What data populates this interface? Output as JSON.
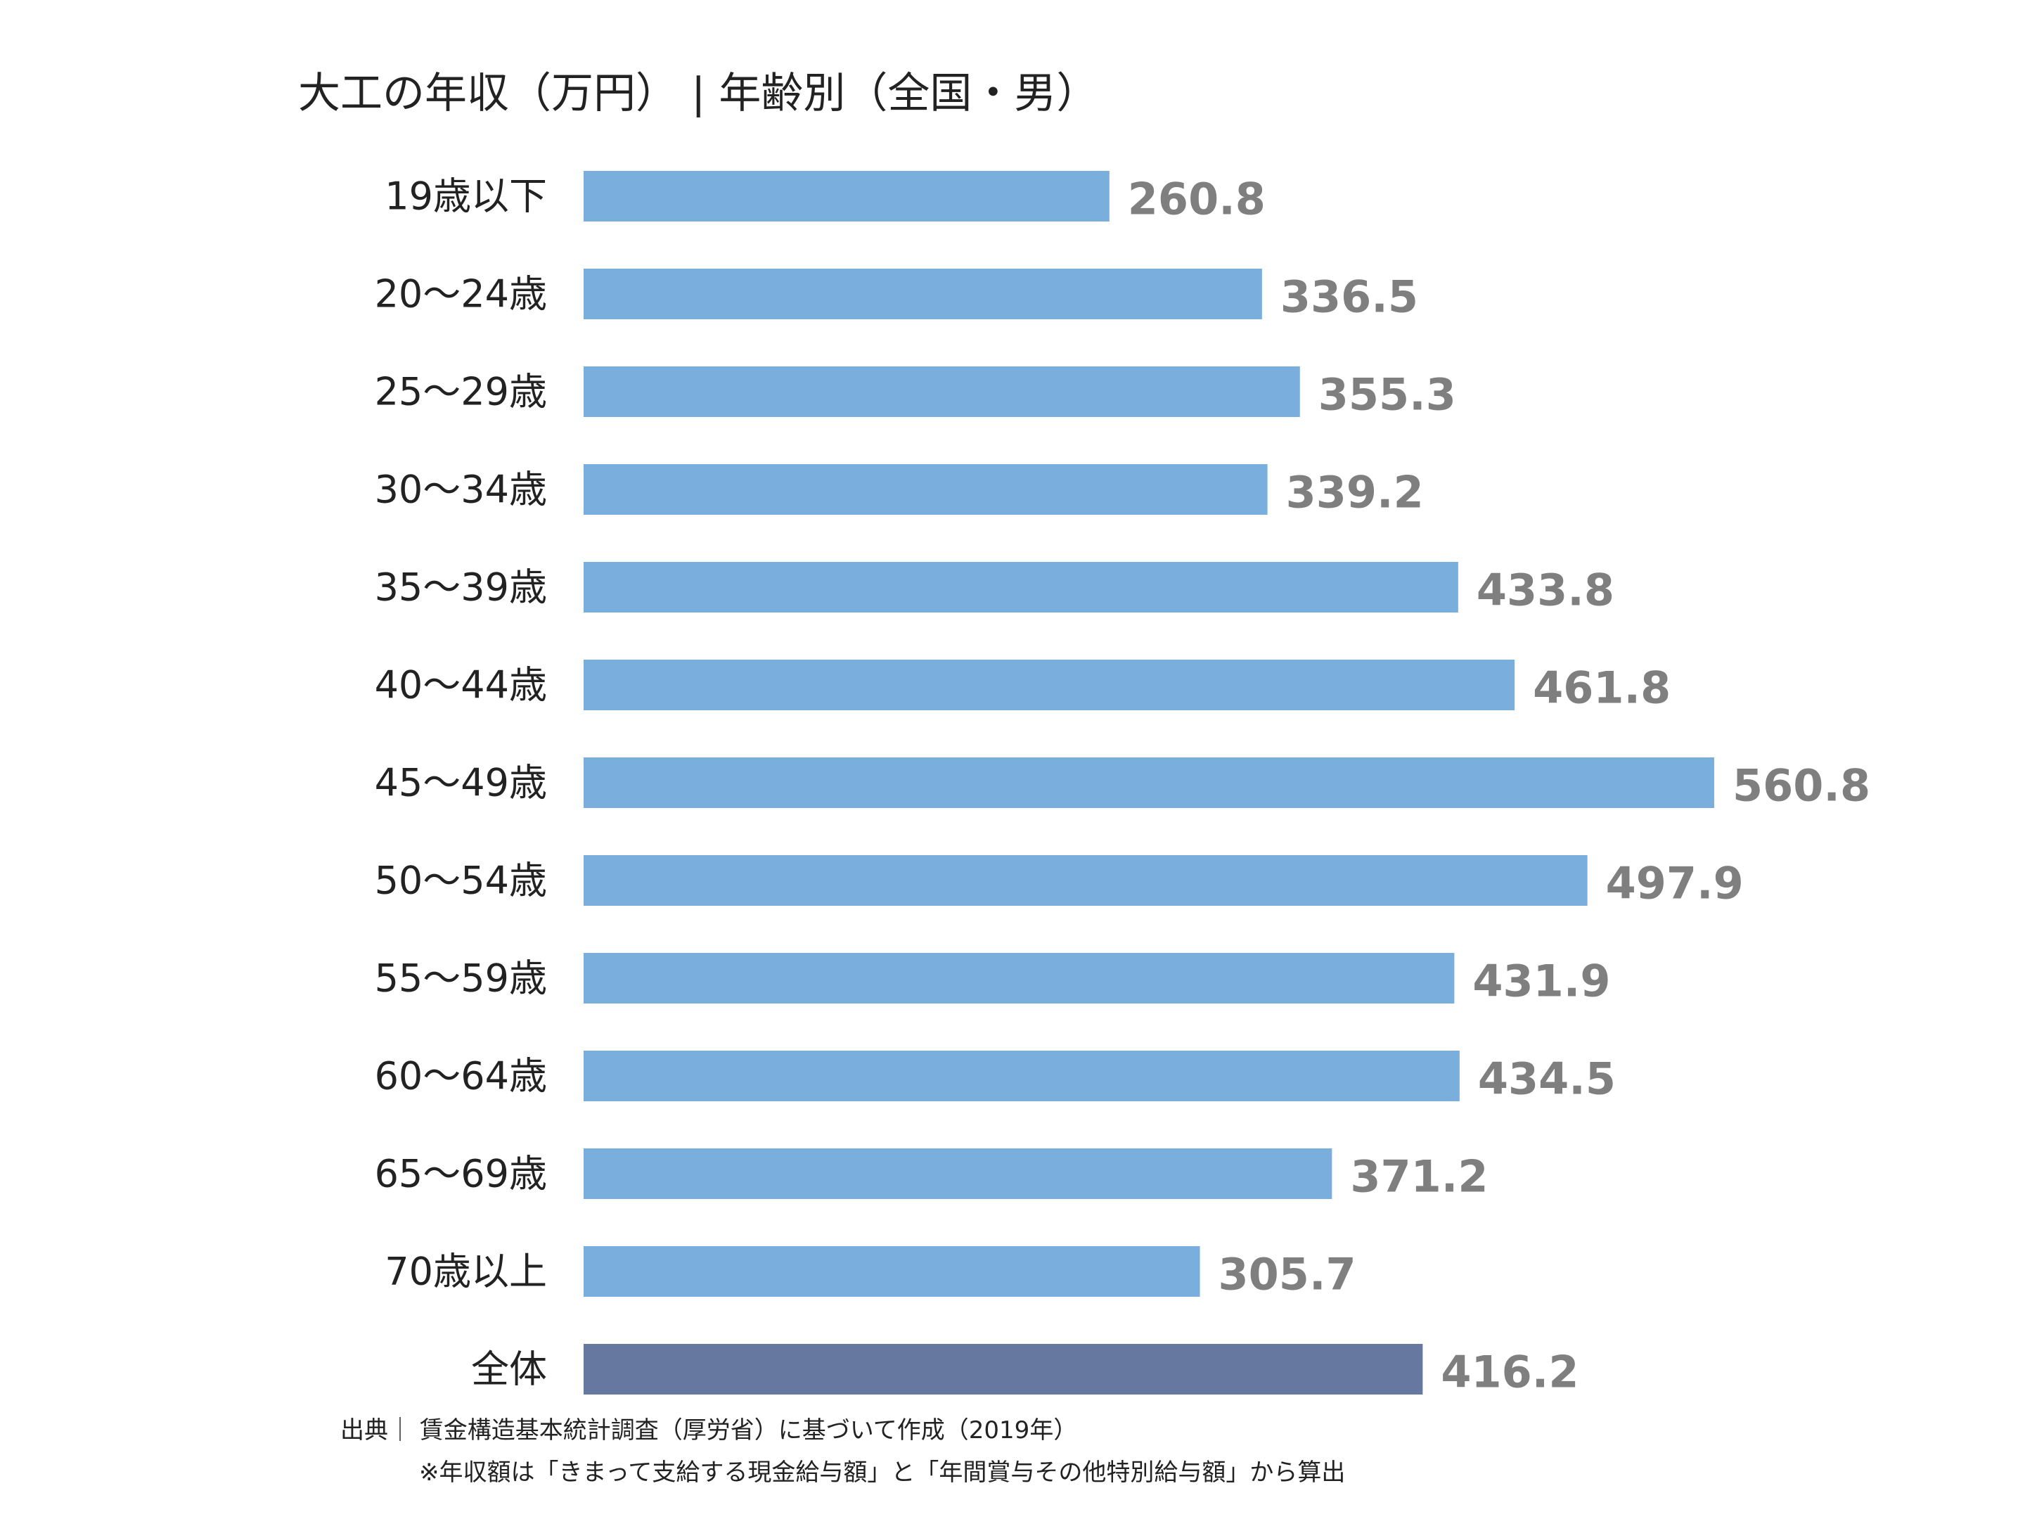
{
  "chart_data": {
    "type": "bar",
    "orientation": "horizontal",
    "title": "大工の年収（万円） | 年齢別（全国・男）",
    "categories": [
      "19歳以下",
      "20〜24歳",
      "25〜29歳",
      "30〜34歳",
      "35〜39歳",
      "40〜44歳",
      "45〜49歳",
      "50〜54歳",
      "55〜59歳",
      "60〜64歳",
      "65〜69歳",
      "70歳以上",
      "全体"
    ],
    "values": [
      260.8,
      336.5,
      355.3,
      339.2,
      433.8,
      461.8,
      560.8,
      497.9,
      431.9,
      434.5,
      371.2,
      305.7,
      416.2
    ],
    "value_labels": [
      "260.8",
      "336.5",
      "355.3",
      "339.2",
      "433.8",
      "461.8",
      "560.8",
      "497.9",
      "431.9",
      "434.5",
      "371.2",
      "305.7",
      "416.2"
    ],
    "highlight_category": "全体",
    "xlim": [
      0,
      560.8
    ],
    "grid": false,
    "legend": "none"
  },
  "colors": {
    "bar": "#7aaedc",
    "bar_highlight": "#66789f",
    "value_label": "#7f7f7f"
  },
  "source": "出典｜ 賃金構造基本統計調査（厚労省）に基づいて作成（2019年）",
  "note": "※年収額は「きまって支給する現金給与額」と「年間賞与その他特別給与額」から算出"
}
